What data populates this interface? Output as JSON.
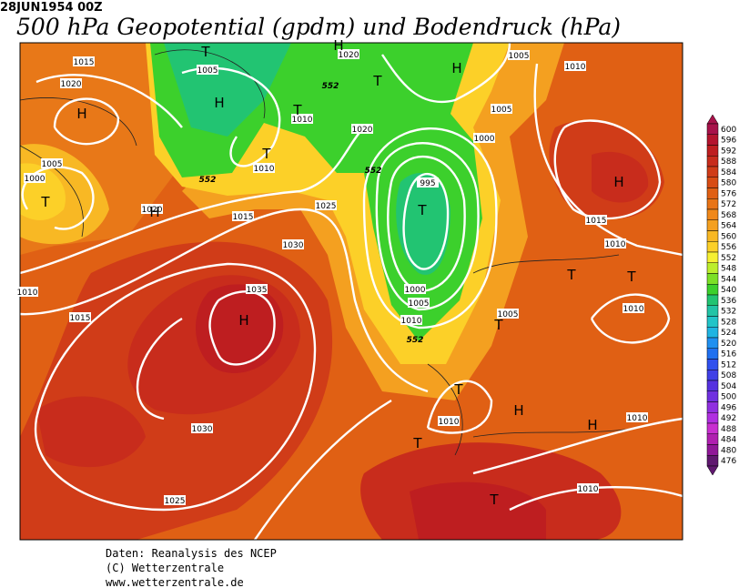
{
  "header": {
    "date": "28JUN1954 00Z",
    "title": "500 hPa Geopotential (gpdm) und Bodendruck (hPa)"
  },
  "colorbar": {
    "levels": [
      600,
      596,
      592,
      588,
      584,
      580,
      576,
      572,
      568,
      564,
      560,
      556,
      552,
      548,
      544,
      540,
      536,
      532,
      528,
      524,
      520,
      516,
      512,
      508,
      504,
      500,
      496,
      492,
      488,
      484,
      480,
      476
    ],
    "colors": [
      "#a8124a",
      "#b4142e",
      "#be1e20",
      "#c82c1c",
      "#d03c18",
      "#d84c14",
      "#e06014",
      "#e87416",
      "#f0881a",
      "#f4a020",
      "#f8b824",
      "#fcd028",
      "#f6f032",
      "#bcee2c",
      "#7ce026",
      "#3cd02c",
      "#22c472",
      "#22c4a6",
      "#22c4c8",
      "#20b4e2",
      "#2090f0",
      "#2070f0",
      "#3050ee",
      "#4040e6",
      "#5632e0",
      "#7030e0",
      "#9030e0",
      "#b030e0",
      "#c830d0",
      "#b020b0",
      "#901898",
      "#601870"
    ]
  },
  "map": {
    "isobar_labels": [
      1015,
      1020,
      1005,
      1020,
      1005,
      1010,
      1010,
      1020,
      1005,
      1000,
      1005,
      1000,
      1010,
      1020,
      995,
      1025,
      1015,
      1015,
      1010,
      1030,
      1010,
      1035,
      1015,
      1000,
      1005,
      1010,
      1005,
      1010,
      1030,
      1010,
      1010,
      1025,
      1010
    ],
    "contour_labels": [
      552,
      552,
      552,
      552
    ],
    "pressure_centers": [
      "T",
      "H",
      "H",
      "T",
      "H",
      "T",
      "H",
      "T",
      "H",
      "T",
      "H",
      "T",
      "T",
      "T",
      "H",
      "T",
      "T",
      "H",
      "H",
      "T",
      "T"
    ]
  },
  "footer": {
    "source": "Daten: Reanalysis des NCEP",
    "copyright": "(C) Wetterzentrale",
    "url": "www.wetterzentrale.de"
  }
}
